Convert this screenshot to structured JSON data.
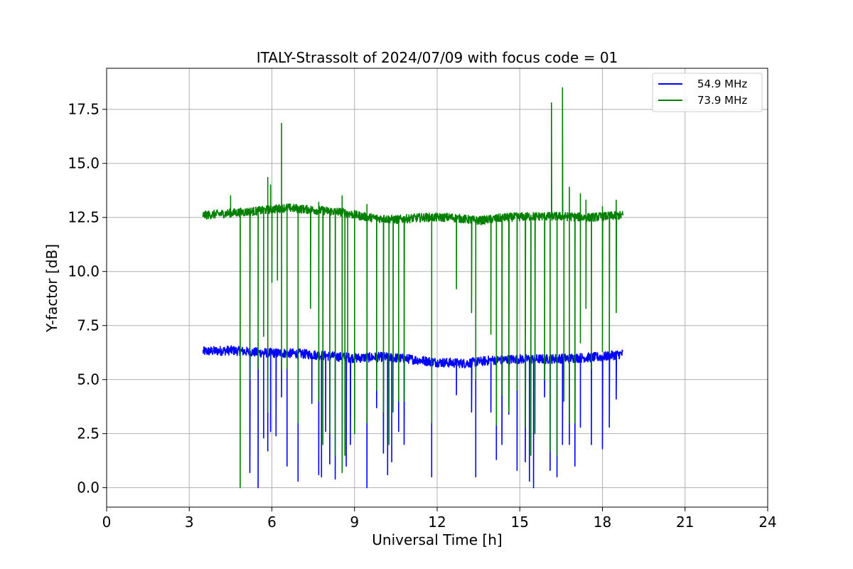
{
  "chart_data": {
    "type": "line",
    "title": "ITALY-Strassolt of 2024/07/09 with focus code = 01",
    "xlabel": "Universal Time [h]",
    "ylabel": "Y-factor [dB]",
    "xlim": [
      0,
      24
    ],
    "ylim": [
      -0.9,
      19.4
    ],
    "xticks": [
      0,
      3,
      6,
      9,
      12,
      15,
      18,
      21,
      24
    ],
    "xtick_labels": [
      "0",
      "3",
      "6",
      "9",
      "12",
      "15",
      "18",
      "21",
      "24"
    ],
    "yticks": [
      0,
      2.5,
      5,
      7.5,
      10,
      12.5,
      15,
      17.5
    ],
    "ytick_labels": [
      "0.0",
      "2.5",
      "5.0",
      "7.5",
      "10.0",
      "12.5",
      "15.0",
      "17.5"
    ],
    "grid": true,
    "legend_position": "top-right",
    "x_range": [
      3.5,
      18.75
    ],
    "series": [
      {
        "name": "54.9 MHz",
        "color": "#0000ff",
        "baseline": [
          [
            3.5,
            6.3
          ],
          [
            4.5,
            6.35
          ],
          [
            5.5,
            6.25
          ],
          [
            7,
            6.2
          ],
          [
            8,
            6.1
          ],
          [
            9,
            6.0
          ],
          [
            10,
            6.05
          ],
          [
            11,
            5.95
          ],
          [
            12,
            5.8
          ],
          [
            13,
            5.75
          ],
          [
            14,
            5.9
          ],
          [
            15,
            5.95
          ],
          [
            16,
            5.95
          ],
          [
            17,
            6.0
          ],
          [
            18,
            6.05
          ],
          [
            18.75,
            6.2
          ]
        ],
        "dips": [
          [
            5.2,
            0.7
          ],
          [
            5.5,
            0.0
          ],
          [
            5.7,
            2.3
          ],
          [
            5.85,
            1.7
          ],
          [
            5.95,
            2.6
          ],
          [
            6.15,
            2.4
          ],
          [
            6.35,
            4.2
          ],
          [
            6.55,
            1.0
          ],
          [
            6.95,
            0.3
          ],
          [
            7.45,
            3.9
          ],
          [
            7.7,
            0.6
          ],
          [
            7.8,
            0.5
          ],
          [
            7.95,
            2.6
          ],
          [
            8.1,
            1.1
          ],
          [
            8.3,
            0.4
          ],
          [
            8.55,
            0.8
          ],
          [
            8.7,
            1.0
          ],
          [
            8.85,
            2.0
          ],
          [
            9.0,
            3.1
          ],
          [
            9.45,
            0.0
          ],
          [
            9.8,
            3.7
          ],
          [
            10.05,
            1.6
          ],
          [
            10.2,
            0.6
          ],
          [
            10.35,
            1.2
          ],
          [
            10.6,
            2.6
          ],
          [
            10.8,
            2.0
          ],
          [
            11.8,
            0.5
          ],
          [
            12.7,
            4.3
          ],
          [
            13.25,
            3.5
          ],
          [
            13.4,
            0.5
          ],
          [
            13.95,
            3.5
          ],
          [
            14.15,
            1.3
          ],
          [
            14.35,
            2.0
          ],
          [
            14.6,
            3.4
          ],
          [
            14.9,
            0.8
          ],
          [
            15.2,
            1.2
          ],
          [
            15.35,
            0.3
          ],
          [
            15.5,
            0.0
          ],
          [
            15.9,
            4.2
          ],
          [
            16.1,
            0.8
          ],
          [
            16.35,
            0.5
          ],
          [
            16.55,
            2.0
          ],
          [
            16.8,
            2.0
          ],
          [
            17.0,
            1.0
          ],
          [
            17.2,
            2.8
          ],
          [
            17.6,
            2.0
          ],
          [
            18.0,
            1.8
          ],
          [
            18.25,
            2.8
          ],
          [
            18.5,
            4.1
          ]
        ]
      },
      {
        "name": "73.9 MHz",
        "color": "#008000",
        "baseline": [
          [
            3.5,
            12.6
          ],
          [
            4.5,
            12.7
          ],
          [
            5.5,
            12.8
          ],
          [
            6.5,
            12.95
          ],
          [
            7.5,
            12.85
          ],
          [
            8.5,
            12.75
          ],
          [
            9.5,
            12.5
          ],
          [
            10.5,
            12.4
          ],
          [
            11.5,
            12.5
          ],
          [
            12.5,
            12.5
          ],
          [
            13.5,
            12.35
          ],
          [
            14.5,
            12.5
          ],
          [
            15.5,
            12.55
          ],
          [
            16.5,
            12.55
          ],
          [
            17.5,
            12.5
          ],
          [
            18.75,
            12.6
          ]
        ],
        "spikes": [
          [
            4.5,
            13.5
          ],
          [
            5.85,
            14.35
          ],
          [
            5.95,
            14.0
          ],
          [
            6.35,
            16.85
          ],
          [
            7.7,
            13.2
          ],
          [
            8.55,
            13.5
          ],
          [
            9.45,
            13.1
          ],
          [
            16.15,
            17.8
          ],
          [
            16.55,
            18.5
          ],
          [
            16.8,
            13.9
          ],
          [
            17.2,
            13.6
          ],
          [
            17.4,
            13.3
          ],
          [
            18.0,
            13.0
          ],
          [
            18.5,
            13.3
          ]
        ],
        "dips": [
          [
            4.85,
            0.0
          ],
          [
            5.2,
            5.0
          ],
          [
            5.5,
            5.5
          ],
          [
            5.7,
            7.0
          ],
          [
            5.85,
            3.5
          ],
          [
            6.0,
            9.5
          ],
          [
            6.2,
            9.6
          ],
          [
            6.35,
            5.5
          ],
          [
            6.55,
            5.5
          ],
          [
            6.95,
            3.0
          ],
          [
            7.4,
            8.3
          ],
          [
            7.7,
            4.0
          ],
          [
            7.85,
            2.0
          ],
          [
            8.1,
            2.5
          ],
          [
            8.3,
            1.5
          ],
          [
            8.55,
            0.7
          ],
          [
            8.65,
            1.5
          ],
          [
            8.75,
            6.0
          ],
          [
            9.0,
            2.5
          ],
          [
            9.45,
            3.0
          ],
          [
            9.8,
            4.5
          ],
          [
            10.05,
            3.5
          ],
          [
            10.25,
            2.0
          ],
          [
            10.4,
            3.5
          ],
          [
            10.6,
            4.0
          ],
          [
            10.8,
            4.0
          ],
          [
            11.8,
            3.0
          ],
          [
            12.7,
            9.2
          ],
          [
            13.25,
            8.1
          ],
          [
            13.4,
            5.0
          ],
          [
            13.95,
            7.1
          ],
          [
            14.15,
            2.9
          ],
          [
            14.35,
            4.3
          ],
          [
            14.6,
            3.5
          ],
          [
            14.9,
            4.5
          ],
          [
            15.2,
            2.8
          ],
          [
            15.4,
            1.5
          ],
          [
            15.55,
            2.5
          ],
          [
            15.9,
            5.0
          ],
          [
            16.1,
            1.7
          ],
          [
            16.35,
            1.5
          ],
          [
            16.6,
            4.0
          ],
          [
            16.8,
            3.0
          ],
          [
            17.0,
            3.0
          ],
          [
            17.2,
            6.7
          ],
          [
            17.4,
            8.3
          ],
          [
            17.6,
            5.5
          ],
          [
            18.0,
            6.3
          ],
          [
            18.25,
            6.2
          ],
          [
            18.5,
            8.1
          ]
        ]
      }
    ]
  }
}
